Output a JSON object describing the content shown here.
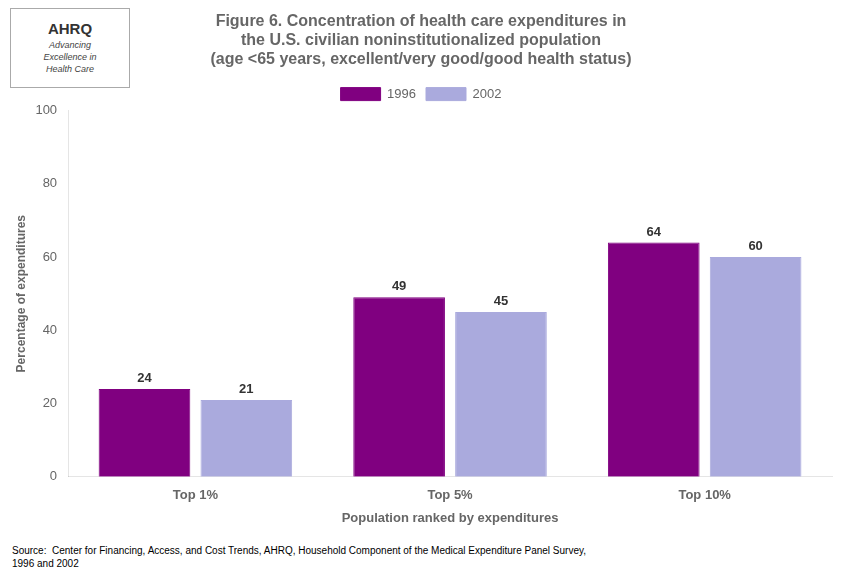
{
  "chart_data": {
    "type": "bar",
    "title": [
      "Figure 6. Concentration of health care expenditures in",
      "the U.S. civilian noninstitutionalized population",
      "(age <65 years, excellent/very good/good health status)"
    ],
    "annotations": [
      "AHRQ",
      "Advancing\nExcellence in\nHealth Care",
      "Source:  Center for Financing, Access, and Cost Trends, AHRQ, Household Component of the Medical Expenditure Panel Survey,\n1996 and 2002"
    ],
    "categories": [
      "Top 1%",
      "Top 5%",
      "Top 10%"
    ],
    "series": [
      {
        "name": "1996",
        "color": "#800080",
        "values": [
          24,
          49,
          64
        ]
      },
      {
        "name": "2002",
        "color": "#aaaadd",
        "values": [
          21,
          45,
          60
        ]
      }
    ],
    "xlabel": "Population ranked by expenditures",
    "ylabel": "Percentage of expenditures",
    "ylim": [
      0,
      100
    ],
    "yticks": [
      0,
      20,
      40,
      60,
      80,
      100
    ],
    "grid": false,
    "legend": "top",
    "data_labels": true
  }
}
